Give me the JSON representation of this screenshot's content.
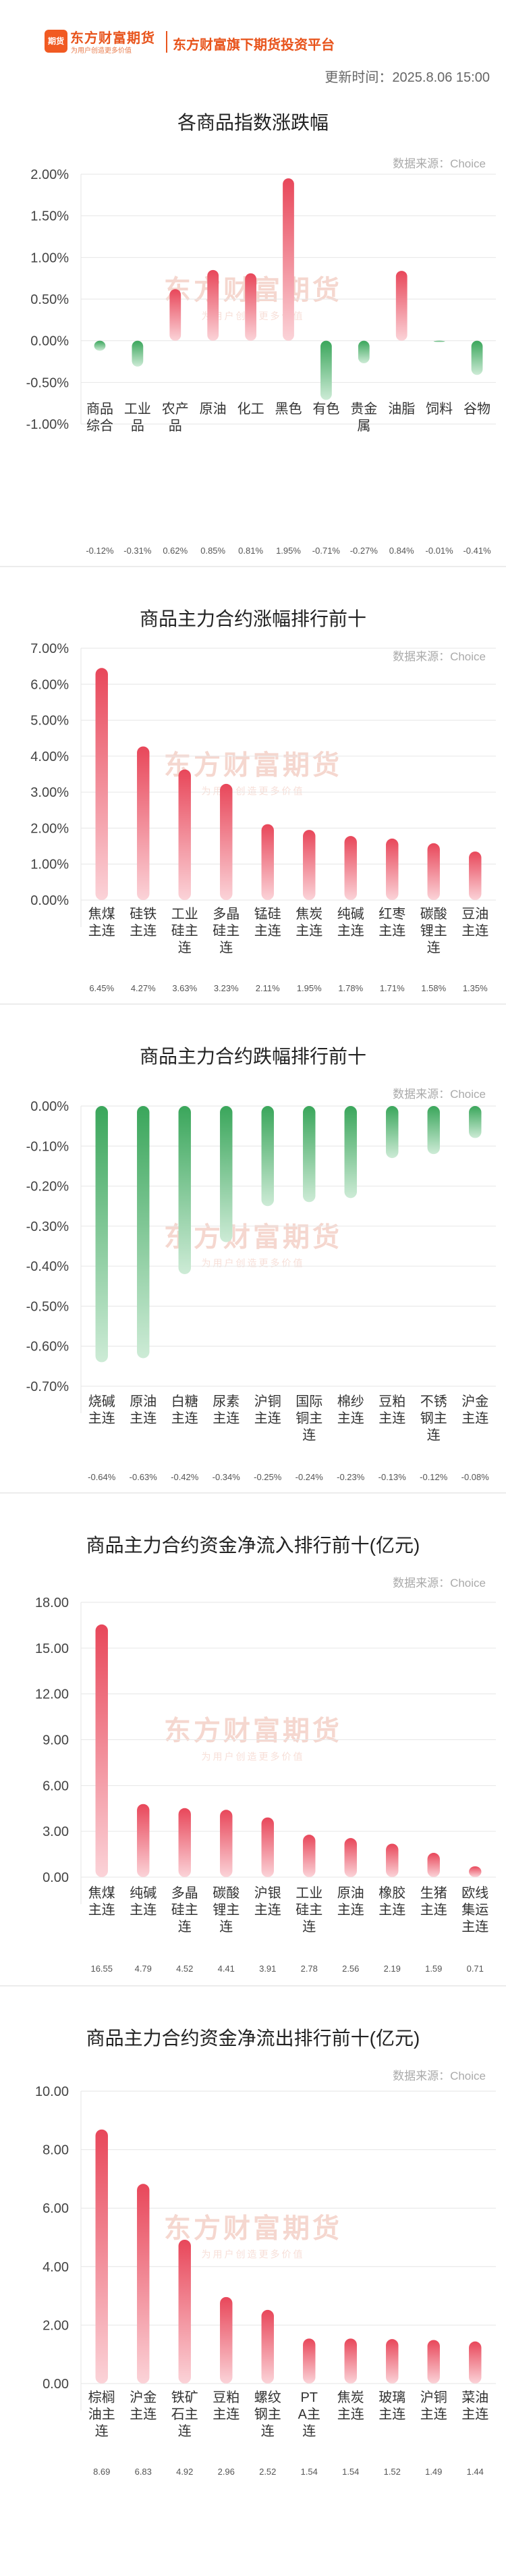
{
  "header": {
    "logo_text": "期货",
    "brand_name": "东方财富期货",
    "brand_slogan": "为用户创造更多价值",
    "platform_title": "东方财富旗下期货投资平台",
    "update_time": "更新时间：2025.8.06 15:00"
  },
  "watermark": {
    "main": "东方财富期货",
    "sub": "为用户创造更多价值"
  },
  "chart_data": [
    {
      "type": "bar",
      "title": "各商品指数涨跌幅",
      "source": "数据来源：Choice",
      "categories": [
        "商品综合",
        "工业品",
        "农产品",
        "原油",
        "化工",
        "黑色",
        "有色",
        "贵金属",
        "油脂",
        "饲料",
        "谷物"
      ],
      "values": [
        -0.12,
        -0.31,
        0.62,
        0.85,
        0.81,
        1.95,
        -0.71,
        -0.27,
        0.84,
        -0.01,
        -0.41
      ],
      "value_labels": [
        "-0.12%",
        "-0.31%",
        "0.62%",
        "0.85%",
        "0.81%",
        "1.95%",
        "-0.71%",
        "-0.27%",
        "0.84%",
        "-0.01%",
        "-0.41%"
      ],
      "ylim": [
        -1.0,
        2.0
      ],
      "yticks": [
        2.0,
        1.5,
        1.0,
        0.5,
        0.0,
        -0.5,
        -1.0
      ],
      "ytick_labels": [
        "2.00%",
        "1.50%",
        "1.00%",
        "0.50%",
        "0.00%",
        "-0.50%",
        "-1.00%"
      ],
      "grid": true,
      "colors": {
        "up": "#e8475a",
        "down": "#3aa65b"
      }
    },
    {
      "type": "bar",
      "title": "商品主力合约涨幅排行前十",
      "source": "数据来源：Choice",
      "categories": [
        "焦煤主连",
        "硅铁主连",
        "工业硅主连",
        "多晶硅主连",
        "锰硅主连",
        "焦炭主连",
        "纯碱主连",
        "红枣主连",
        "碳酸锂主连",
        "豆油主连"
      ],
      "values": [
        6.45,
        4.27,
        3.63,
        3.23,
        2.11,
        1.95,
        1.78,
        1.71,
        1.58,
        1.35
      ],
      "value_labels": [
        "6.45%",
        "4.27%",
        "3.63%",
        "3.23%",
        "2.11%",
        "1.95%",
        "1.78%",
        "1.71%",
        "1.58%",
        "1.35%"
      ],
      "ylim": [
        0,
        7.0
      ],
      "yticks": [
        7,
        6,
        5,
        4,
        3,
        2,
        1,
        0
      ],
      "ytick_labels": [
        "7.00%",
        "6.00%",
        "5.00%",
        "4.00%",
        "3.00%",
        "2.00%",
        "1.00%",
        "0.00%"
      ],
      "grid": true,
      "colors": {
        "up": "#e8475a",
        "down": "#3aa65b"
      }
    },
    {
      "type": "bar",
      "title": "商品主力合约跌幅排行前十",
      "source": "数据来源：Choice",
      "categories": [
        "烧碱主连",
        "原油主连",
        "白糖主连",
        "尿素主连",
        "沪铜主连",
        "国际铜主连",
        "棉纱主连",
        "豆粕主连",
        "不锈钢主连",
        "沪金主连"
      ],
      "values": [
        -0.64,
        -0.63,
        -0.42,
        -0.34,
        -0.25,
        -0.24,
        -0.23,
        -0.13,
        -0.12,
        -0.08
      ],
      "value_labels": [
        "-0.64%",
        "-0.63%",
        "-0.42%",
        "-0.34%",
        "-0.25%",
        "-0.24%",
        "-0.23%",
        "-0.13%",
        "-0.12%",
        "-0.08%"
      ],
      "ylim": [
        -0.7,
        0.0
      ],
      "yticks": [
        0,
        -0.1,
        -0.2,
        -0.3,
        -0.4,
        -0.5,
        -0.6,
        -0.7
      ],
      "ytick_labels": [
        "0.00%",
        "-0.10%",
        "-0.20%",
        "-0.30%",
        "-0.40%",
        "-0.50%",
        "-0.60%",
        "-0.70%"
      ],
      "grid": true,
      "colors": {
        "up": "#e8475a",
        "down": "#3aa65b"
      }
    },
    {
      "type": "bar",
      "title": "商品主力合约资金净流入排行前十(亿元)",
      "source": "数据来源：Choice",
      "categories": [
        "焦煤主连",
        "纯碱主连",
        "多晶硅主连",
        "碳酸锂主连",
        "沪银主连",
        "工业硅主连",
        "原油主连",
        "橡胶主连",
        "生猪主连",
        "欧线集运主连"
      ],
      "values": [
        16.55,
        4.79,
        4.52,
        4.41,
        3.91,
        2.78,
        2.56,
        2.19,
        1.59,
        0.71
      ],
      "value_labels": [
        "16.55",
        "4.79",
        "4.52",
        "4.41",
        "3.91",
        "2.78",
        "2.56",
        "2.19",
        "1.59",
        "0.71"
      ],
      "ylim": [
        0,
        18
      ],
      "yticks": [
        18,
        15,
        12,
        9,
        6,
        3,
        0
      ],
      "ytick_labels": [
        "18.00",
        "15.00",
        "12.00",
        "9.00",
        "6.00",
        "3.00",
        "0.00"
      ],
      "grid": true,
      "colors": {
        "up": "#e8475a",
        "down": "#3aa65b"
      }
    },
    {
      "type": "bar",
      "title": "商品主力合约资金净流出排行前十(亿元)",
      "source": "数据来源：Choice",
      "categories": [
        "棕榈油主连",
        "沪金主连",
        "铁矿石主连",
        "豆粕主连",
        "螺纹钢主连",
        "PTA主连",
        "焦炭主连",
        "玻璃主连",
        "沪铜主连",
        "菜油主连"
      ],
      "values": [
        8.69,
        6.83,
        4.92,
        2.96,
        2.52,
        1.54,
        1.54,
        1.52,
        1.49,
        1.44
      ],
      "value_labels": [
        "8.69",
        "6.83",
        "4.92",
        "2.96",
        "2.52",
        "1.54",
        "1.54",
        "1.52",
        "1.49",
        "1.44"
      ],
      "ylim": [
        0,
        10
      ],
      "yticks": [
        10,
        8,
        6,
        4,
        2,
        0
      ],
      "ytick_labels": [
        "10.00",
        "8.00",
        "6.00",
        "4.00",
        "2.00",
        "0.00"
      ],
      "grid": true,
      "colors": {
        "up": "#e8475a",
        "down": "#3aa65b"
      }
    }
  ]
}
